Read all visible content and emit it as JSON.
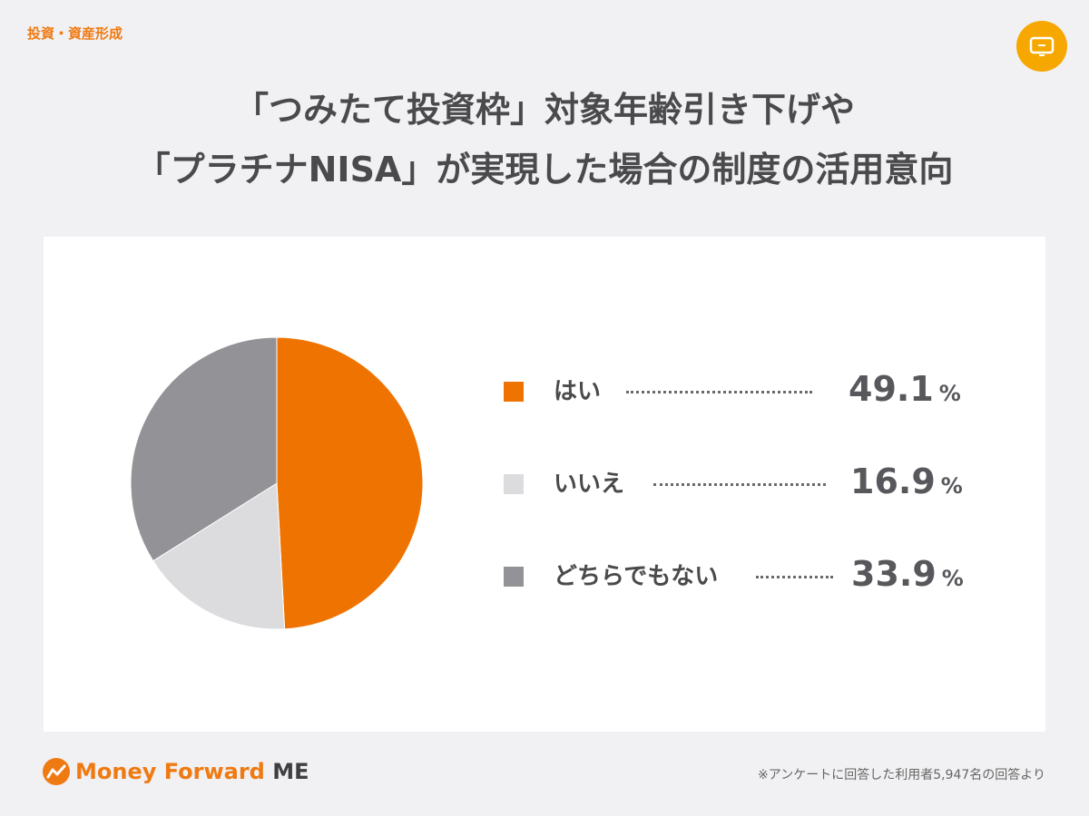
{
  "header": {
    "category": "投資・資産形成",
    "title_line1": "「つみたて投資枠」対象年齢引き下げや",
    "title_line2": "「プラチナNISA」が実現した場合の制度の活用意向",
    "badge_icon": "tv-icon"
  },
  "chart_data": {
    "type": "pie",
    "title": "「つみたて投資枠」対象年齢引き下げや「プラチナNISA」が実現した場合の制度の活用意向",
    "categories": [
      "はい",
      "いいえ",
      "どちらでもない"
    ],
    "values": [
      49.1,
      16.9,
      33.9
    ],
    "value_labels": [
      "49.1",
      "16.9",
      "33.9"
    ],
    "unit": "%",
    "colors": [
      "#ef7300",
      "#dcdbde",
      "#939296"
    ],
    "start_angle_deg": 0,
    "direction": "clockwise",
    "legend_position": "right"
  },
  "legend": [
    {
      "label": "はい",
      "value": "49.1",
      "unit": "%"
    },
    {
      "label": "いいえ",
      "value": "16.9",
      "unit": "%"
    },
    {
      "label": "どちらでもない",
      "value": "33.9",
      "unit": "%"
    }
  ],
  "footer": {
    "logo_text": "Money Forward",
    "logo_suffix": "ME",
    "footnote": "※アンケートに回答した利用者5,947名の回答より"
  },
  "colors": {
    "accent": "#ef7a12",
    "badge": "#f6a800",
    "background": "#f1f0f2",
    "card": "#ffffff"
  }
}
